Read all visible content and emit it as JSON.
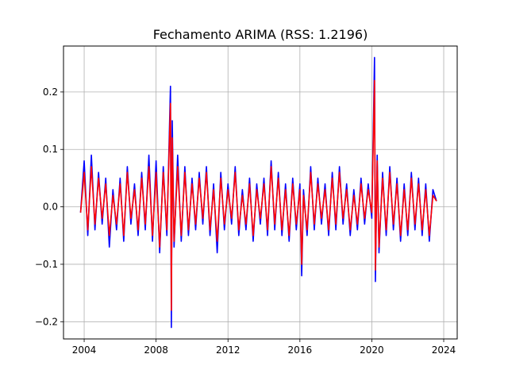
{
  "chart_data": {
    "type": "line",
    "title": "Fechamento ARIMA (RSS: 1.2196)",
    "xlabel": "",
    "ylabel": "",
    "xlim": [
      2002.85,
      2024.75
    ],
    "ylim": [
      -0.23,
      0.28
    ],
    "grid": true,
    "x_ticks": [
      {
        "value": 2004,
        "label": "2004"
      },
      {
        "value": 2008,
        "label": "2008"
      },
      {
        "value": 2012,
        "label": "2012"
      },
      {
        "value": 2016,
        "label": "2016"
      },
      {
        "value": 2020,
        "label": "2020"
      },
      {
        "value": 2024,
        "label": "2024"
      }
    ],
    "y_ticks": [
      {
        "value": 0.2,
        "label": "0.2"
      },
      {
        "value": 0.1,
        "label": "0.1"
      },
      {
        "value": 0.0,
        "label": "0.0"
      },
      {
        "value": -0.1,
        "label": "−0.1"
      },
      {
        "value": -0.2,
        "label": "−0.2"
      }
    ],
    "series": [
      {
        "color": "#0000ff",
        "x": [
          2003.8,
          2004.0,
          2004.2,
          2004.4,
          2004.6,
          2004.8,
          2005.0,
          2005.2,
          2005.4,
          2005.6,
          2005.8,
          2006.0,
          2006.2,
          2006.4,
          2006.6,
          2006.8,
          2007.0,
          2007.2,
          2007.4,
          2007.6,
          2007.8,
          2008.0,
          2008.2,
          2008.4,
          2008.6,
          2008.8,
          2008.85,
          2008.9,
          2009.0,
          2009.2,
          2009.4,
          2009.6,
          2009.8,
          2010.0,
          2010.2,
          2010.4,
          2010.6,
          2010.8,
          2011.0,
          2011.2,
          2011.4,
          2011.6,
          2011.8,
          2012.0,
          2012.2,
          2012.4,
          2012.6,
          2012.8,
          2013.0,
          2013.2,
          2013.4,
          2013.6,
          2013.8,
          2014.0,
          2014.2,
          2014.4,
          2014.6,
          2014.8,
          2015.0,
          2015.2,
          2015.4,
          2015.6,
          2015.8,
          2016.0,
          2016.1,
          2016.2,
          2016.4,
          2016.6,
          2016.8,
          2017.0,
          2017.2,
          2017.4,
          2017.6,
          2017.8,
          2018.0,
          2018.2,
          2018.4,
          2018.6,
          2018.8,
          2019.0,
          2019.2,
          2019.4,
          2019.6,
          2019.8,
          2020.0,
          2020.15,
          2020.2,
          2020.3,
          2020.4,
          2020.6,
          2020.8,
          2021.0,
          2021.2,
          2021.4,
          2021.6,
          2021.8,
          2022.0,
          2022.2,
          2022.4,
          2022.6,
          2022.8,
          2023.0,
          2023.2,
          2023.4,
          2023.6
        ],
        "y": [
          -0.01,
          0.08,
          -0.05,
          0.09,
          -0.04,
          0.06,
          -0.03,
          0.05,
          -0.07,
          0.03,
          -0.04,
          0.05,
          -0.06,
          0.07,
          -0.03,
          0.04,
          -0.05,
          0.06,
          -0.04,
          0.09,
          -0.06,
          0.08,
          -0.08,
          0.07,
          -0.05,
          0.21,
          -0.21,
          0.15,
          -0.07,
          0.09,
          -0.06,
          0.07,
          -0.05,
          0.05,
          -0.04,
          0.06,
          -0.03,
          0.07,
          -0.05,
          0.04,
          -0.08,
          0.06,
          -0.04,
          0.04,
          -0.03,
          0.07,
          -0.05,
          0.03,
          -0.04,
          0.05,
          -0.06,
          0.04,
          -0.03,
          0.05,
          -0.05,
          0.08,
          -0.04,
          0.06,
          -0.05,
          0.04,
          -0.06,
          0.05,
          -0.04,
          0.04,
          -0.12,
          0.03,
          -0.05,
          0.07,
          -0.04,
          0.05,
          -0.03,
          0.04,
          -0.05,
          0.06,
          -0.04,
          0.07,
          -0.03,
          0.04,
          -0.05,
          0.03,
          -0.04,
          0.05,
          -0.03,
          0.04,
          -0.02,
          0.26,
          -0.13,
          0.09,
          -0.08,
          0.06,
          -0.05,
          0.07,
          -0.04,
          0.05,
          -0.06,
          0.04,
          -0.05,
          0.06,
          -0.04,
          0.05,
          -0.05,
          0.04,
          -0.06,
          0.03,
          0.01
        ]
      },
      {
        "color": "#ff0000",
        "x": [
          2003.8,
          2004.0,
          2004.2,
          2004.4,
          2004.6,
          2004.8,
          2005.0,
          2005.2,
          2005.4,
          2005.6,
          2005.8,
          2006.0,
          2006.2,
          2006.4,
          2006.6,
          2006.8,
          2007.0,
          2007.2,
          2007.4,
          2007.6,
          2007.8,
          2008.0,
          2008.2,
          2008.4,
          2008.6,
          2008.8,
          2008.85,
          2008.9,
          2009.0,
          2009.2,
          2009.4,
          2009.6,
          2009.8,
          2010.0,
          2010.2,
          2010.4,
          2010.6,
          2010.8,
          2011.0,
          2011.2,
          2011.4,
          2011.6,
          2011.8,
          2012.0,
          2012.2,
          2012.4,
          2012.6,
          2012.8,
          2013.0,
          2013.2,
          2013.4,
          2013.6,
          2013.8,
          2014.0,
          2014.2,
          2014.4,
          2014.6,
          2014.8,
          2015.0,
          2015.2,
          2015.4,
          2015.6,
          2015.8,
          2016.0,
          2016.1,
          2016.2,
          2016.4,
          2016.6,
          2016.8,
          2017.0,
          2017.2,
          2017.4,
          2017.6,
          2017.8,
          2018.0,
          2018.2,
          2018.4,
          2018.6,
          2018.8,
          2019.0,
          2019.2,
          2019.4,
          2019.6,
          2019.8,
          2020.0,
          2020.15,
          2020.2,
          2020.3,
          2020.4,
          2020.6,
          2020.8,
          2021.0,
          2021.2,
          2021.4,
          2021.6,
          2021.8,
          2022.0,
          2022.2,
          2022.4,
          2022.6,
          2022.8,
          2023.0,
          2023.2,
          2023.4,
          2023.6
        ],
        "y": [
          -0.01,
          0.06,
          -0.04,
          0.07,
          -0.03,
          0.05,
          -0.02,
          0.04,
          -0.05,
          0.02,
          -0.03,
          0.04,
          -0.05,
          0.06,
          -0.02,
          0.03,
          -0.04,
          0.05,
          -0.03,
          0.07,
          -0.05,
          0.06,
          -0.07,
          0.06,
          -0.04,
          0.18,
          -0.18,
          0.12,
          -0.06,
          0.07,
          -0.05,
          0.06,
          -0.04,
          0.04,
          -0.03,
          0.05,
          -0.02,
          0.06,
          -0.04,
          0.03,
          -0.06,
          0.05,
          -0.03,
          0.03,
          -0.02,
          0.06,
          -0.04,
          0.02,
          -0.03,
          0.04,
          -0.05,
          0.03,
          -0.02,
          0.04,
          -0.04,
          0.07,
          -0.03,
          0.05,
          -0.04,
          0.03,
          -0.05,
          0.04,
          -0.03,
          0.03,
          -0.1,
          0.02,
          -0.04,
          0.06,
          -0.03,
          0.04,
          -0.02,
          0.03,
          -0.04,
          0.05,
          -0.03,
          0.06,
          -0.02,
          0.03,
          -0.04,
          0.02,
          -0.03,
          0.04,
          -0.02,
          0.03,
          -0.01,
          0.22,
          -0.11,
          0.08,
          -0.07,
          0.05,
          -0.04,
          0.06,
          -0.03,
          0.04,
          -0.05,
          0.03,
          -0.04,
          0.05,
          -0.03,
          0.04,
          -0.04,
          0.03,
          -0.05,
          0.02,
          0.01
        ]
      }
    ]
  }
}
